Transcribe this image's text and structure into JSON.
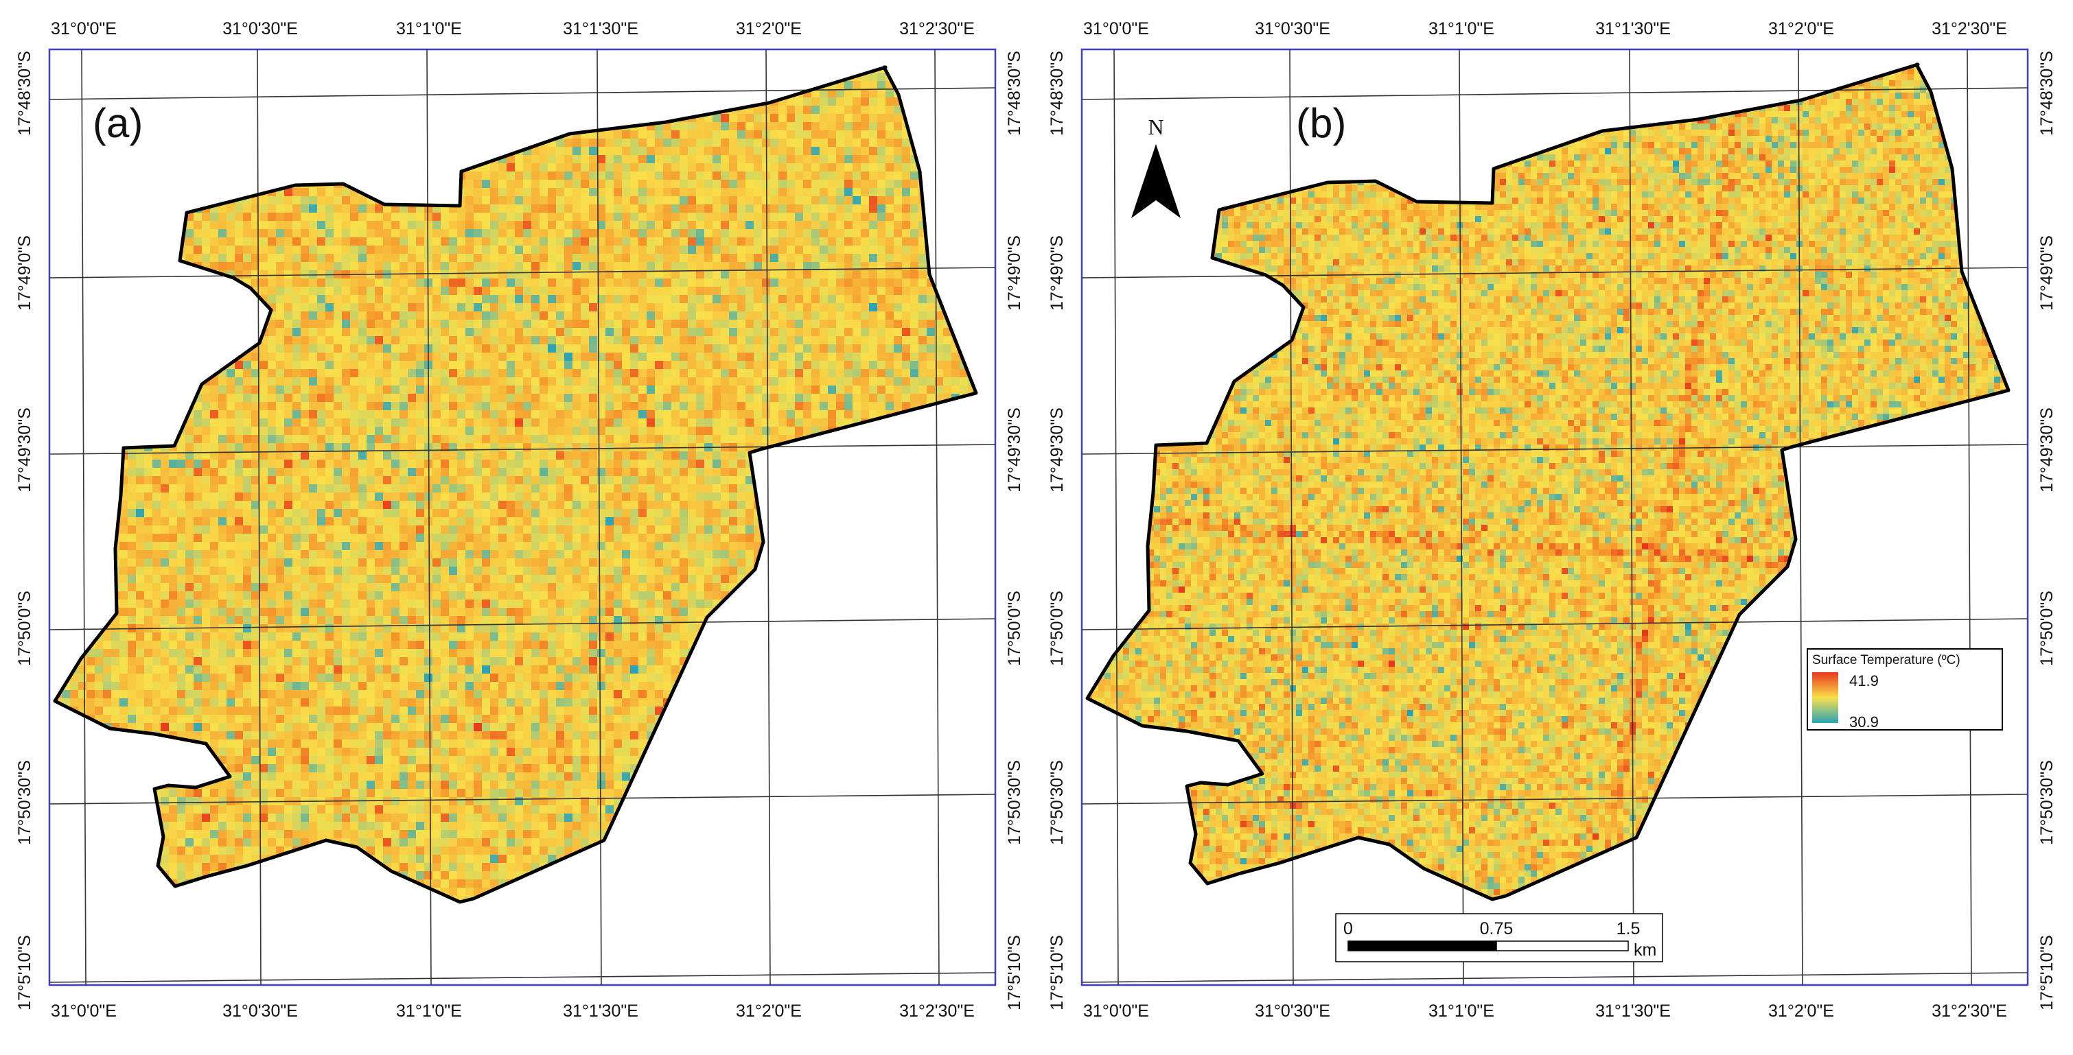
{
  "colors": {
    "frame": "#3f3fc8",
    "grid": "#333333",
    "outline": "#000000",
    "temp_high": "#e8361c",
    "temp_mid": "#f9e04b",
    "temp_low": "#2aa3b7"
  },
  "figure": {
    "panels": [
      {
        "id": "a",
        "label": "(a)",
        "top_ticks": [
          "31°0'0\"E",
          "31°0'30\"E",
          "31°1'0\"E",
          "31°1'30\"E",
          "31°2'0\"E",
          "31°2'30\"E"
        ],
        "bottom_ticks": [
          "31°0'0\"E",
          "31°0'30\"E",
          "31°1'0\"E",
          "31°1'30\"E",
          "31°2'0\"E",
          "31°2'30\"E"
        ],
        "left_ticks": [
          "17°48'30\"S",
          "17°49'0\"S",
          "17°49'30\"S",
          "17°50'0\"S",
          "17°50'30\"S",
          "17°5'10\"S"
        ],
        "right_ticks": [
          "17°48'30\"S",
          "17°49'0\"S",
          "17°49'30\"S",
          "17°50'0\"S",
          "17°50'30\"S",
          "17°5'10\"S"
        ]
      },
      {
        "id": "b",
        "label": "(b)",
        "top_ticks": [
          "31°0'0\"E",
          "31°0'30\"E",
          "31°1'0\"E",
          "31°1'30\"E",
          "31°2'0\"E",
          "31°2'30\"E"
        ],
        "bottom_ticks": [
          "31°0'0\"E",
          "31°0'30\"E",
          "31°1'0\"E",
          "31°1'30\"E",
          "31°2'0\"E",
          "31°2'30\"E"
        ],
        "left_ticks": [
          "17°48'30\"S",
          "17°49'0\"S",
          "17°49'30\"S",
          "17°50'0\"S",
          "17°50'30\"S",
          "17°5'10\"S"
        ],
        "right_ticks": [
          "17°48'30\"S",
          "17°49'0\"S",
          "17°49'30\"S",
          "17°50'0\"S",
          "17°50'30\"S",
          "17°5'10\"S"
        ]
      }
    ],
    "north_arrow": {
      "letter": "N"
    },
    "legend": {
      "title": "Surface Temperature (ºC)",
      "max": "41.9",
      "min": "30.9",
      "max_value": 41.9,
      "min_value": 30.9
    },
    "scalebar": {
      "labels": [
        "0",
        "0.75",
        "1.5"
      ],
      "unit": "km",
      "values": [
        0,
        0.75,
        1.5
      ]
    }
  }
}
